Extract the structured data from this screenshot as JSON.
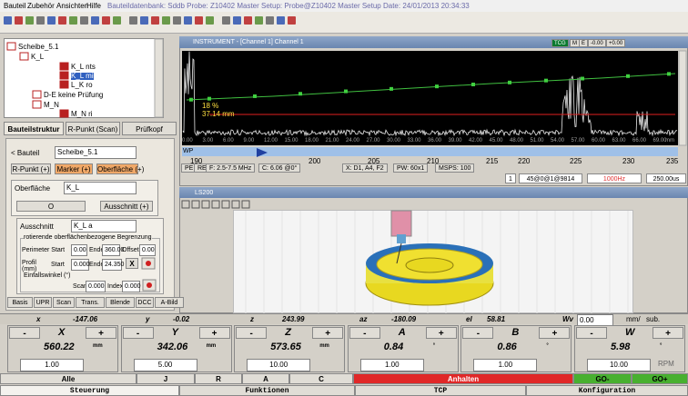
{
  "menu": {
    "items": [
      "Bauteil",
      "Zubehör",
      "Ansichten",
      "Hilfe"
    ],
    "status": "Bauteildatenbank: Sddb  Probe: Z10402  Master Setup: Probe@Z10402  Master Setup Date: 24/01/2013 20:34:33"
  },
  "tree": {
    "items": [
      "Scheibe_5.1",
      "K_L",
      "K_L nts",
      "K_L mi",
      "L_K ro",
      "D-E keine Prüfung",
      "M_N",
      "M_N ri"
    ]
  },
  "left_tabs": [
    "Bauteilstruktur",
    "R-Punkt (Scan)",
    "Prüfkopf"
  ],
  "form": {
    "bauteil_label": "< Bauteil",
    "bauteil_value": "Scheibe_5.1",
    "rpunkt_button": "R-Punkt (+)",
    "marker_button": "Marker (+)",
    "oberflaeche_button": "Oberfläche (+)",
    "oberflaeche_label": "Oberfläche",
    "oberflaeche_value": "K_L",
    "o_button": "O",
    "ausschnitt_button": "Ausschnitt (+)",
    "ausschnitt_label": "Ausschnitt",
    "ausschnitt_value": "K_L a",
    "group_title": "rotierende oberflächenbezogene Begrenzung",
    "perimeter_label": "Perimeter Start",
    "perimeter_start": "0.00",
    "ende_label": "Ende",
    "perimeter_end": "360.00",
    "offset_label": "Offset",
    "offset_value": "0.00",
    "profil_label": "Profil (mm)",
    "start_label": "Start",
    "profil_start": "0.000",
    "profil_end": "24.350",
    "x_button": "X",
    "einfall_label": "Einfallswinkel (°)",
    "scan_label": "Scan",
    "scan_value": "0.000",
    "index_label": "Index",
    "index_value": "0.000",
    "tabs": [
      "Basis",
      "UPR",
      "Scan",
      "Trans.",
      "Blende",
      "DCC",
      "A-Bild"
    ]
  },
  "instrument": {
    "title": "INSTRUMENT - [Channel 1] Channel 1",
    "tcg": [
      "TCG",
      "M",
      "E",
      "-0.00",
      "+0.00"
    ],
    "gate_amplitude": "18 %",
    "gate_depth": "37.14 mm",
    "x_labels": [
      "0.00",
      "3.00",
      "6.00",
      "9.00",
      "12.00",
      "15.00",
      "18.00",
      "21.00",
      "24.00",
      "27.00",
      "30.00",
      "33.00",
      "36.00",
      "39.00",
      "42.00",
      "45.00",
      "48.00",
      "51.00",
      "54.00",
      "57.00",
      "60.00",
      "63.00",
      "66.00",
      "69.00"
    ],
    "x_unit": "mm",
    "wp": "WP",
    "scale": [
      "190",
      "200",
      "205",
      "210",
      "215",
      "220",
      "225",
      "230",
      "235"
    ],
    "info": [
      "PE",
      "RE",
      "F: 2.5-7.5 MHz",
      "C: 6.06 @0°",
      "X: D1, A4, F2",
      "PW: 60x1",
      "MSPS: 100"
    ],
    "status": [
      "1",
      "45@0@1@9814",
      "1000Hz",
      "250.00us"
    ]
  },
  "ls200": {
    "title": "LS200"
  },
  "coords": [
    {
      "label": "x",
      "value": "-147.06"
    },
    {
      "label": "y",
      "value": "-0.02"
    },
    {
      "label": "z",
      "value": "243.99"
    },
    {
      "label": "az",
      "value": "-180.09"
    },
    {
      "label": "el",
      "value": "58.81"
    }
  ],
  "wv": {
    "label": "Wv",
    "value": "0.00",
    "unit": "mm/",
    "sub": "sub."
  },
  "axis_buttons": [
    "-",
    "+"
  ],
  "axes": [
    {
      "name": "X",
      "value": "560.22",
      "unit": "mm",
      "step": "1.00"
    },
    {
      "name": "Y",
      "value": "342.06",
      "unit": "mm",
      "step": "5.00"
    },
    {
      "name": "Z",
      "value": "573.65",
      "unit": "mm",
      "step": "10.00"
    },
    {
      "name": "A",
      "value": "0.84",
      "unit": "°",
      "step": "1.00"
    },
    {
      "name": "B",
      "value": "0.86",
      "unit": "°",
      "step": "1.00"
    },
    {
      "name": "W",
      "value": "5.98",
      "unit": "°",
      "step": "10.00",
      "rate": "RPM"
    }
  ],
  "buttons": [
    "Alle",
    "J",
    "R",
    "A",
    "C",
    "Anhalten",
    "GO-",
    "GO+"
  ],
  "bottom_tabs": [
    "Steuerung",
    "Funktionen",
    "TCP",
    "Konfiguration"
  ]
}
